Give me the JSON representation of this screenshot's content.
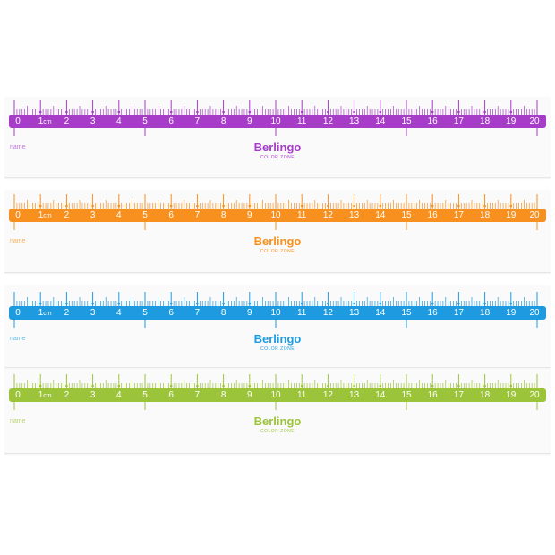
{
  "rulers": [
    {
      "color": "#a63cc8",
      "name_label": "name",
      "brand": "Berlingo",
      "sub": "COLOR ZONE",
      "unit": "cm"
    },
    {
      "color": "#f7901e",
      "name_label": "name",
      "brand": "Berlingo",
      "sub": "COLOR ZONE",
      "unit": "cm"
    },
    {
      "color": "#1e9be0",
      "name_label": "name",
      "brand": "Berlingo",
      "sub": "COLOR ZONE",
      "unit": "cm"
    },
    {
      "color": "#9cc43a",
      "name_label": "name",
      "brand": "Berlingo",
      "sub": "COLOR ZONE",
      "unit": "cm"
    }
  ],
  "scale": {
    "min": 0,
    "max": 20,
    "labels": [
      "0",
      "1",
      "2",
      "3",
      "4",
      "5",
      "6",
      "7",
      "8",
      "9",
      "10",
      "11",
      "12",
      "13",
      "14",
      "15",
      "16",
      "17",
      "18",
      "19",
      "20"
    ]
  }
}
